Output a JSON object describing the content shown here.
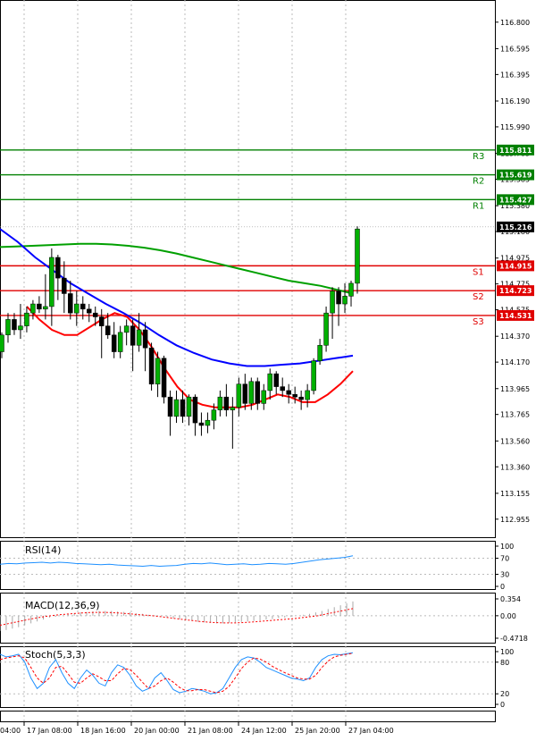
{
  "chart_data": [
    {
      "panel": "price",
      "type": "candlestick",
      "ylim": [
        112.85,
        116.93
      ],
      "y_ticks": [
        "116.800",
        "116.595",
        "116.395",
        "116.190",
        "115.990",
        "115.785",
        "115.585",
        "115.380",
        "115.180",
        "114.975",
        "114.775",
        "114.575",
        "114.370",
        "114.170",
        "113.965",
        "113.765",
        "113.560",
        "113.360",
        "113.155",
        "112.955"
      ],
      "x_labels": [
        "04:00",
        "17 Jan 08:00",
        "18 Jan 16:00",
        "20 Jan 00:00",
        "21 Jan 08:00",
        "24 Jan 12:00",
        "25 Jan 20:00",
        "27 Jan 04:00"
      ],
      "current_price": "115.216",
      "levels": [
        {
          "name": "R3",
          "value": 115.811,
          "label": "115.811",
          "color": "#008000"
        },
        {
          "name": "R2",
          "value": 115.619,
          "label": "115.619",
          "color": "#008000"
        },
        {
          "name": "R1",
          "value": 115.427,
          "label": "115.427",
          "color": "#008000"
        },
        {
          "name": "S1",
          "value": 114.915,
          "label": "114.915",
          "color": "#e00000"
        },
        {
          "name": "S2",
          "value": 114.723,
          "label": "114.723",
          "color": "#e00000"
        },
        {
          "name": "S3",
          "value": 114.531,
          "label": "114.531",
          "color": "#e00000"
        }
      ],
      "candles": [
        {
          "o": 114.25,
          "h": 114.4,
          "l": 114.2,
          "c": 114.38
        },
        {
          "o": 114.38,
          "h": 114.55,
          "l": 114.32,
          "c": 114.5
        },
        {
          "o": 114.5,
          "h": 114.55,
          "l": 114.38,
          "c": 114.42
        },
        {
          "o": 114.42,
          "h": 114.62,
          "l": 114.35,
          "c": 114.45
        },
        {
          "o": 114.45,
          "h": 114.6,
          "l": 114.4,
          "c": 114.55
        },
        {
          "o": 114.55,
          "h": 114.65,
          "l": 114.5,
          "c": 114.62
        },
        {
          "o": 114.62,
          "h": 114.68,
          "l": 114.55,
          "c": 114.58
        },
        {
          "o": 114.58,
          "h": 114.85,
          "l": 114.5,
          "c": 114.6
        },
        {
          "o": 114.6,
          "h": 115.05,
          "l": 114.45,
          "c": 114.98
        },
        {
          "o": 114.98,
          "h": 115.0,
          "l": 114.65,
          "c": 114.82
        },
        {
          "o": 114.82,
          "h": 114.95,
          "l": 114.55,
          "c": 114.7
        },
        {
          "o": 114.7,
          "h": 114.8,
          "l": 114.5,
          "c": 114.55
        },
        {
          "o": 114.55,
          "h": 114.72,
          "l": 114.45,
          "c": 114.62
        },
        {
          "o": 114.62,
          "h": 114.68,
          "l": 114.5,
          "c": 114.58
        },
        {
          "o": 114.58,
          "h": 114.62,
          "l": 114.48,
          "c": 114.55
        },
        {
          "o": 114.55,
          "h": 114.6,
          "l": 114.45,
          "c": 114.52
        },
        {
          "o": 114.52,
          "h": 114.58,
          "l": 114.2,
          "c": 114.45
        },
        {
          "o": 114.45,
          "h": 114.55,
          "l": 114.35,
          "c": 114.38
        },
        {
          "o": 114.38,
          "h": 114.48,
          "l": 114.2,
          "c": 114.25
        },
        {
          "o": 114.25,
          "h": 114.45,
          "l": 114.2,
          "c": 114.4
        },
        {
          "o": 114.4,
          "h": 114.5,
          "l": 114.3,
          "c": 114.45
        },
        {
          "o": 114.45,
          "h": 114.5,
          "l": 114.1,
          "c": 114.3
        },
        {
          "o": 114.3,
          "h": 114.55,
          "l": 114.25,
          "c": 114.42
        },
        {
          "o": 114.42,
          "h": 114.48,
          "l": 114.1,
          "c": 114.28
        },
        {
          "o": 114.28,
          "h": 114.32,
          "l": 113.95,
          "c": 114.0
        },
        {
          "o": 114.0,
          "h": 114.25,
          "l": 113.9,
          "c": 114.2
        },
        {
          "o": 114.2,
          "h": 114.22,
          "l": 113.85,
          "c": 113.9
        },
        {
          "o": 113.9,
          "h": 113.95,
          "l": 113.6,
          "c": 113.75
        },
        {
          "o": 113.75,
          "h": 113.95,
          "l": 113.7,
          "c": 113.88
        },
        {
          "o": 113.88,
          "h": 113.95,
          "l": 113.7,
          "c": 113.75
        },
        {
          "o": 113.75,
          "h": 113.92,
          "l": 113.68,
          "c": 113.9
        },
        {
          "o": 113.9,
          "h": 113.92,
          "l": 113.6,
          "c": 113.7
        },
        {
          "o": 113.7,
          "h": 113.78,
          "l": 113.6,
          "c": 113.68
        },
        {
          "o": 113.68,
          "h": 113.78,
          "l": 113.62,
          "c": 113.72
        },
        {
          "o": 113.72,
          "h": 113.85,
          "l": 113.65,
          "c": 113.8
        },
        {
          "o": 113.8,
          "h": 113.95,
          "l": 113.75,
          "c": 113.9
        },
        {
          "o": 113.9,
          "h": 114.0,
          "l": 113.75,
          "c": 113.8
        },
        {
          "o": 113.8,
          "h": 113.9,
          "l": 113.5,
          "c": 113.82
        },
        {
          "o": 113.82,
          "h": 114.05,
          "l": 113.75,
          "c": 114.0
        },
        {
          "o": 114.0,
          "h": 114.08,
          "l": 113.8,
          "c": 113.85
        },
        {
          "o": 113.85,
          "h": 114.05,
          "l": 113.8,
          "c": 114.02
        },
        {
          "o": 114.02,
          "h": 114.05,
          "l": 113.8,
          "c": 113.85
        },
        {
          "o": 113.85,
          "h": 114.0,
          "l": 113.8,
          "c": 113.95
        },
        {
          "o": 113.95,
          "h": 114.12,
          "l": 113.88,
          "c": 114.08
        },
        {
          "o": 114.08,
          "h": 114.1,
          "l": 113.92,
          "c": 113.98
        },
        {
          "o": 113.98,
          "h": 114.05,
          "l": 113.9,
          "c": 113.95
        },
        {
          "o": 113.95,
          "h": 114.0,
          "l": 113.85,
          "c": 113.92
        },
        {
          "o": 113.92,
          "h": 113.98,
          "l": 113.85,
          "c": 113.9
        },
        {
          "o": 113.9,
          "h": 113.95,
          "l": 113.8,
          "c": 113.88
        },
        {
          "o": 113.88,
          "h": 114.0,
          "l": 113.82,
          "c": 113.95
        },
        {
          "o": 113.95,
          "h": 114.2,
          "l": 113.92,
          "c": 114.18
        },
        {
          "o": 114.18,
          "h": 114.35,
          "l": 114.15,
          "c": 114.3
        },
        {
          "o": 114.3,
          "h": 114.6,
          "l": 114.25,
          "c": 114.55
        },
        {
          "o": 114.55,
          "h": 114.75,
          "l": 114.35,
          "c": 114.72
        },
        {
          "o": 114.72,
          "h": 114.75,
          "l": 114.45,
          "c": 114.62
        },
        {
          "o": 114.62,
          "h": 114.78,
          "l": 114.55,
          "c": 114.68
        },
        {
          "o": 114.68,
          "h": 114.8,
          "l": 114.6,
          "c": 114.78
        },
        {
          "o": 114.78,
          "h": 115.22,
          "l": 114.7,
          "c": 115.2
        }
      ],
      "series": [
        {
          "name": "",
          "color": "#00a000",
          "values": [
            115.06,
            115.065,
            115.07,
            115.075,
            115.08,
            115.085,
            115.085,
            115.08,
            115.07,
            115.055,
            115.035,
            115.01,
            114.98,
            114.95,
            114.92,
            114.89,
            114.86,
            114.83,
            114.8,
            114.78,
            114.76,
            114.73,
            114.7
          ]
        },
        {
          "name": "",
          "color": "#0000ff",
          "values": [
            115.2,
            115.1,
            114.98,
            114.88,
            114.78,
            114.7,
            114.62,
            114.55,
            114.47,
            114.38,
            114.3,
            114.24,
            114.19,
            114.16,
            114.14,
            114.14,
            114.15,
            114.16,
            114.18,
            114.2,
            114.22
          ]
        },
        {
          "name": "",
          "color": "#ff0000",
          "values": [
            114.6,
            114.5,
            114.42,
            114.38,
            114.38,
            114.44,
            114.5,
            114.55,
            114.52,
            114.42,
            114.28,
            114.12,
            113.98,
            113.88,
            113.84,
            113.82,
            113.82,
            113.82,
            113.84,
            113.88,
            113.92,
            113.9,
            113.86,
            113.86,
            113.92,
            114.0,
            114.1
          ]
        }
      ]
    },
    {
      "panel": "rsi",
      "type": "line",
      "title": "RSI(14)",
      "ylim": [
        0,
        100
      ],
      "y_ticks": [
        "100",
        "70",
        "30",
        "0"
      ],
      "series": [
        {
          "name": "",
          "color": "#1e90ff",
          "values": [
            55,
            57,
            56,
            58,
            59,
            60,
            58,
            60,
            59,
            57,
            56,
            55,
            54,
            55,
            53,
            52,
            51,
            50,
            52,
            50,
            51,
            52,
            55,
            57,
            56,
            58,
            56,
            54,
            55,
            56,
            54,
            55,
            57,
            56,
            55,
            57,
            60,
            63,
            66,
            68,
            70,
            72,
            76
          ]
        }
      ]
    },
    {
      "panel": "macd",
      "type": "bar",
      "title": "MACD(12,36,9)",
      "ylim": [
        -0.4718,
        0.354
      ],
      "y_ticks": [
        "0.354",
        "0.00",
        "-0.4718"
      ],
      "histogram": [
        -0.32,
        -0.3,
        -0.27,
        -0.24,
        -0.2,
        -0.16,
        -0.12,
        -0.08,
        -0.04,
        -0.02,
        0.0,
        0.03,
        0.05,
        0.07,
        0.08,
        0.09,
        0.1,
        0.1,
        0.1,
        0.09,
        0.08,
        0.07,
        0.05,
        0.04,
        0.02,
        0.01,
        0.0,
        -0.03,
        -0.05,
        -0.07,
        -0.09,
        -0.11,
        -0.13,
        -0.14,
        -0.15,
        -0.16,
        -0.16,
        -0.15,
        -0.14,
        -0.13,
        -0.12,
        -0.11,
        -0.1,
        -0.08,
        -0.07,
        -0.05,
        -0.04,
        -0.02,
        0.0,
        0.02,
        0.04,
        0.07,
        0.1,
        0.14,
        0.18,
        0.22,
        0.26,
        0.3
      ],
      "series": [
        {
          "name": "",
          "color": "#ff0000",
          "values": [
            -0.2,
            -0.15,
            -0.1,
            -0.05,
            -0.01,
            0.02,
            0.04,
            0.06,
            0.07,
            0.07,
            0.06,
            0.04,
            0.02,
            0.0,
            -0.03,
            -0.06,
            -0.09,
            -0.12,
            -0.14,
            -0.15,
            -0.15,
            -0.14,
            -0.12,
            -0.1,
            -0.08,
            -0.06,
            -0.03,
            0.0,
            0.05,
            0.1,
            0.15
          ]
        }
      ]
    },
    {
      "panel": "stoch",
      "type": "line",
      "title": "Stoch(5,3,3)",
      "ylim": [
        0,
        100
      ],
      "y_ticks": [
        "100",
        "80",
        "20",
        "0"
      ],
      "series": [
        {
          "name": "",
          "color": "#1e90ff",
          "values": [
            95,
            90,
            92,
            95,
            80,
            50,
            30,
            40,
            70,
            85,
            60,
            40,
            30,
            50,
            65,
            55,
            40,
            35,
            60,
            75,
            70,
            55,
            35,
            25,
            30,
            50,
            60,
            45,
            28,
            22,
            25,
            30,
            28,
            25,
            20,
            22,
            30,
            50,
            70,
            85,
            90,
            88,
            80,
            70,
            65,
            60,
            55,
            50,
            48,
            45,
            50,
            70,
            85,
            92,
            95,
            94,
            96,
            98
          ]
        },
        {
          "name": "",
          "color": "#ff0000",
          "values": [
            85,
            88,
            90,
            92,
            88,
            70,
            50,
            40,
            50,
            70,
            72,
            58,
            42,
            40,
            50,
            58,
            52,
            45,
            45,
            58,
            68,
            66,
            55,
            42,
            30,
            35,
            45,
            50,
            42,
            32,
            26,
            26,
            28,
            28,
            25,
            22,
            25,
            34,
            50,
            68,
            80,
            88,
            86,
            80,
            72,
            66,
            60,
            55,
            50,
            48,
            48,
            55,
            70,
            82,
            90,
            93,
            95,
            97
          ]
        }
      ]
    }
  ]
}
